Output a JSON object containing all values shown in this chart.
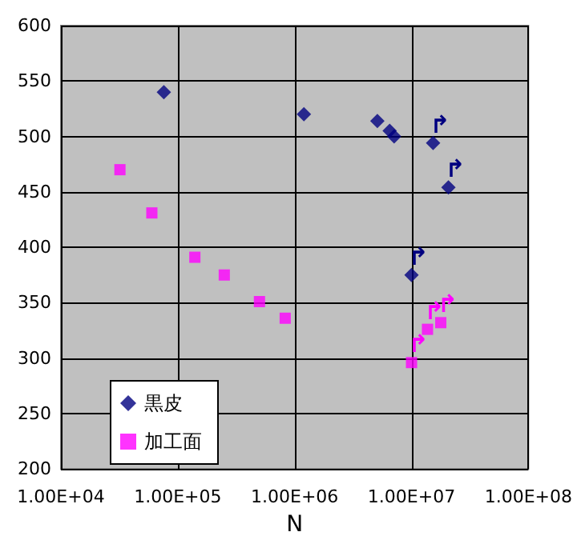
{
  "chart_data": {
    "type": "scatter",
    "xlabel": "N",
    "log": "x",
    "grid": true,
    "legend": "bottom left",
    "xlim": [
      10000,
      100000000
    ],
    "xticks": [
      {
        "value": 10000,
        "label": "1.00E+04"
      },
      {
        "value": 100000,
        "label": "1.00E+05"
      },
      {
        "value": 1000000,
        "label": "1.00E+06"
      },
      {
        "value": 10000000,
        "label": "1.00E+07"
      },
      {
        "value": 100000000,
        "label": "1.00E+08"
      }
    ],
    "ylim": [
      200,
      600
    ],
    "yticks": [
      200,
      250,
      300,
      350,
      400,
      450,
      500,
      550,
      600
    ],
    "series": [
      {
        "name": "黒皮",
        "color": "#000080",
        "marker": "diamond",
        "x": [
          76000,
          1200000,
          5100000,
          6500000,
          7100000,
          15300000,
          20700000,
          10000000
        ],
        "values": [
          540,
          520,
          514,
          505,
          500,
          494,
          454,
          375
        ]
      },
      {
        "name": "加工面",
        "color": "#ff00ff",
        "marker": "square",
        "x": [
          32000,
          60000,
          140000,
          250000,
          500000,
          830000,
          10000000,
          13700000,
          17800000
        ],
        "values": [
          470,
          431,
          391,
          375,
          351,
          336,
          296,
          326,
          332
        ]
      }
    ],
    "annotations": [
      {
        "text": "↱",
        "x": 15300000,
        "y": 494
      },
      {
        "text": "↱",
        "x": 20700000,
        "y": 454
      },
      {
        "text": "↱",
        "x": 10000000,
        "y": 375
      },
      {
        "text": "↱",
        "x": 10000000,
        "y": 296
      },
      {
        "text": "↱",
        "x": 13700000,
        "y": 326
      },
      {
        "text": "↱",
        "x": 17800000,
        "y": 332
      }
    ]
  }
}
